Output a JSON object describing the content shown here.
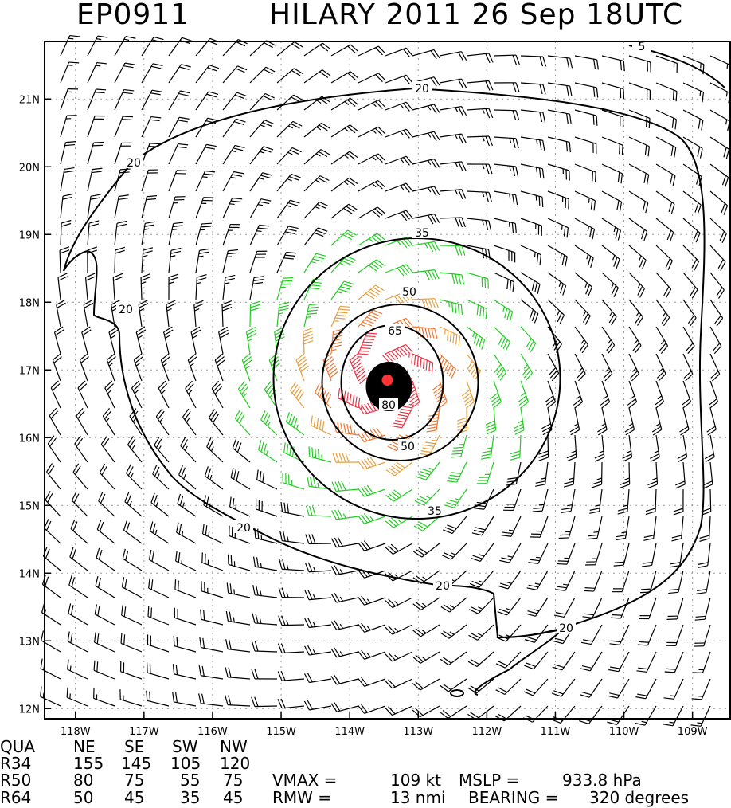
{
  "title": {
    "storm_id": "EP0911",
    "description": "HILARY 2011 26 Sep 18UTC"
  },
  "axes": {
    "lat_labels": [
      "21N",
      "20N",
      "19N",
      "18N",
      "17N",
      "16N",
      "15N",
      "14N",
      "13N",
      "12N"
    ],
    "lon_labels": [
      "118W",
      "117W",
      "116W",
      "115W",
      "114W",
      "113W",
      "112W",
      "111W",
      "110W",
      "109W"
    ]
  },
  "storm": {
    "center_lon": -113.45,
    "center_lat": 16.85,
    "marker_color": "#ff3333"
  },
  "contours": {
    "labels": [
      "5",
      "20",
      "20",
      "20",
      "20",
      "20",
      "20",
      "35",
      "35",
      "50",
      "50",
      "65",
      "80"
    ],
    "color": "#000000"
  },
  "colors": {
    "barb_below_34": "#000000",
    "barb_34_50": "#22cc22",
    "barb_50_64": "#e6a040",
    "barb_64_80": "#ee7733",
    "barb_80_plus": "#ee3344"
  },
  "wind_radii": {
    "header": [
      "QUA",
      "NE",
      "SE",
      "SW",
      "NW"
    ],
    "rows": [
      [
        "R34",
        "155",
        "145",
        "105",
        "120"
      ],
      [
        "R50",
        "80",
        "75",
        "55",
        "75"
      ],
      [
        "R64",
        "50",
        "45",
        "35",
        "45"
      ]
    ]
  },
  "stats": {
    "vmax_label": "VMAX =",
    "vmax_value": "109 kt",
    "mslp_label": "MSLP =",
    "mslp_value": "933.8 hPa",
    "rmw_label": "RMW =",
    "rmw_value": "13 nmi",
    "bearing_label": "BEARING =",
    "bearing_value": "320 degrees"
  }
}
